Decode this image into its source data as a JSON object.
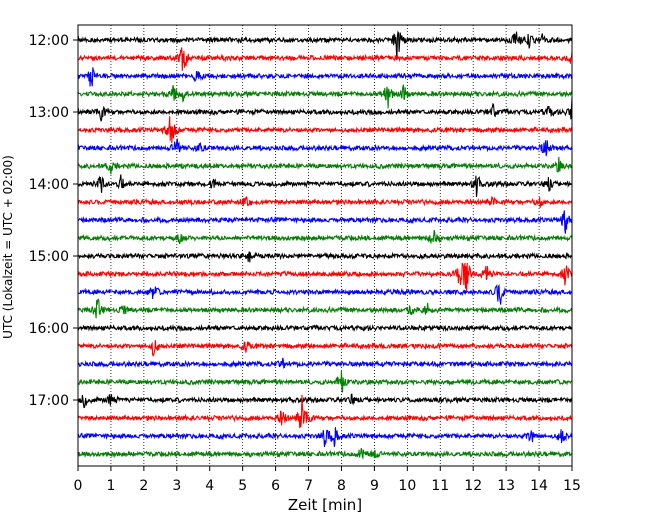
{
  "chart_data": {
    "type": "line",
    "title": "",
    "xlabel": "Zeit  [min]",
    "ylabel": "UTC (Lokalzeit = UTC + 02:00)",
    "xlim": [
      0,
      15
    ],
    "x_ticks": [
      "0",
      "1",
      "2",
      "3",
      "4",
      "5",
      "6",
      "7",
      "8",
      "9",
      "10",
      "11",
      "12",
      "13",
      "14",
      "15"
    ],
    "y_ticks": [
      "12:00",
      "13:00",
      "14:00",
      "15:00",
      "16:00",
      "17:00"
    ],
    "grid": "vertical dotted",
    "trace_colors": [
      "#000000",
      "#ff0000",
      "#0000ff",
      "#008000"
    ],
    "series": [
      {
        "start": "12:00",
        "color": "#000000",
        "events": [
          [
            9.7,
            1.6
          ],
          [
            13.3,
            0.6
          ],
          [
            13.7,
            0.5
          ],
          [
            14.1,
            0.4
          ]
        ]
      },
      {
        "start": "12:15",
        "color": "#ff0000",
        "events": [
          [
            3.2,
            1.4
          ],
          [
            15.0,
            0.6
          ]
        ]
      },
      {
        "start": "12:30",
        "color": "#0000ff",
        "events": [
          [
            0.4,
            1.0
          ],
          [
            3.6,
            0.5
          ]
        ]
      },
      {
        "start": "12:45",
        "color": "#008000",
        "events": [
          [
            2.9,
            0.6
          ],
          [
            3.2,
            0.5
          ],
          [
            9.4,
            1.2
          ],
          [
            9.9,
            0.7
          ]
        ]
      },
      {
        "start": "13:00",
        "color": "#000000",
        "events": [
          [
            0.7,
            0.9
          ],
          [
            12.6,
            0.6
          ],
          [
            14.3,
            0.5
          ],
          [
            15.0,
            1.0
          ]
        ]
      },
      {
        "start": "13:15",
        "color": "#ff0000",
        "events": [
          [
            2.8,
            1.1
          ],
          [
            2.9,
            0.8
          ]
        ]
      },
      {
        "start": "13:30",
        "color": "#0000ff",
        "events": [
          [
            3.0,
            1.1
          ],
          [
            3.7,
            0.4
          ],
          [
            14.2,
            0.8
          ]
        ]
      },
      {
        "start": "13:45",
        "color": "#008000",
        "events": [
          [
            1.0,
            0.5
          ],
          [
            14.6,
            0.5
          ]
        ]
      },
      {
        "start": "14:00",
        "color": "#000000",
        "events": [
          [
            0.7,
            0.8
          ],
          [
            1.3,
            0.6
          ],
          [
            4.1,
            0.4
          ],
          [
            12.1,
            1.0
          ],
          [
            14.3,
            0.5
          ]
        ]
      },
      {
        "start": "14:15",
        "color": "#ff0000",
        "events": [
          [
            5.1,
            0.4
          ],
          [
            12.6,
            0.4
          ],
          [
            14.0,
            0.4
          ]
        ]
      },
      {
        "start": "14:30",
        "color": "#0000ff",
        "events": [
          [
            14.8,
            1.1
          ]
        ]
      },
      {
        "start": "14:45",
        "color": "#008000",
        "events": [
          [
            3.1,
            0.5
          ],
          [
            10.8,
            0.9
          ]
        ]
      },
      {
        "start": "15:00",
        "color": "#000000",
        "events": [
          [
            5.2,
            0.4
          ]
        ]
      },
      {
        "start": "15:15",
        "color": "#ff0000",
        "events": [
          [
            11.6,
            1.1
          ],
          [
            11.8,
            1.4
          ],
          [
            12.4,
            0.7
          ],
          [
            14.8,
            0.9
          ]
        ]
      },
      {
        "start": "15:30",
        "color": "#0000ff",
        "events": [
          [
            2.3,
            0.6
          ],
          [
            12.8,
            1.3
          ]
        ]
      },
      {
        "start": "15:45",
        "color": "#008000",
        "events": [
          [
            0.6,
            0.9
          ],
          [
            1.4,
            0.4
          ],
          [
            10.1,
            0.4
          ],
          [
            10.6,
            0.6
          ]
        ]
      },
      {
        "start": "16:00",
        "color": "#000000",
        "events": []
      },
      {
        "start": "16:15",
        "color": "#ff0000",
        "events": [
          [
            2.3,
            0.8
          ],
          [
            5.1,
            0.4
          ]
        ]
      },
      {
        "start": "16:30",
        "color": "#0000ff",
        "events": [
          [
            6.2,
            0.4
          ]
        ]
      },
      {
        "start": "16:45",
        "color": "#008000",
        "events": [
          [
            8.0,
            1.1
          ]
        ]
      },
      {
        "start": "17:00",
        "color": "#000000",
        "events": [
          [
            0.2,
            0.5
          ],
          [
            1.0,
            0.8
          ],
          [
            8.3,
            0.4
          ]
        ]
      },
      {
        "start": "17:15",
        "color": "#ff0000",
        "events": [
          [
            6.2,
            0.8
          ],
          [
            6.8,
            1.5
          ],
          [
            7.0,
            0.6
          ]
        ]
      },
      {
        "start": "17:30",
        "color": "#0000ff",
        "events": [
          [
            7.5,
            0.8
          ],
          [
            7.8,
            0.9
          ],
          [
            13.8,
            0.8
          ],
          [
            14.7,
            0.7
          ]
        ]
      },
      {
        "start": "17:45",
        "color": "#008000",
        "events": [
          [
            8.6,
            0.6
          ],
          [
            9.0,
            0.5
          ]
        ]
      }
    ]
  }
}
